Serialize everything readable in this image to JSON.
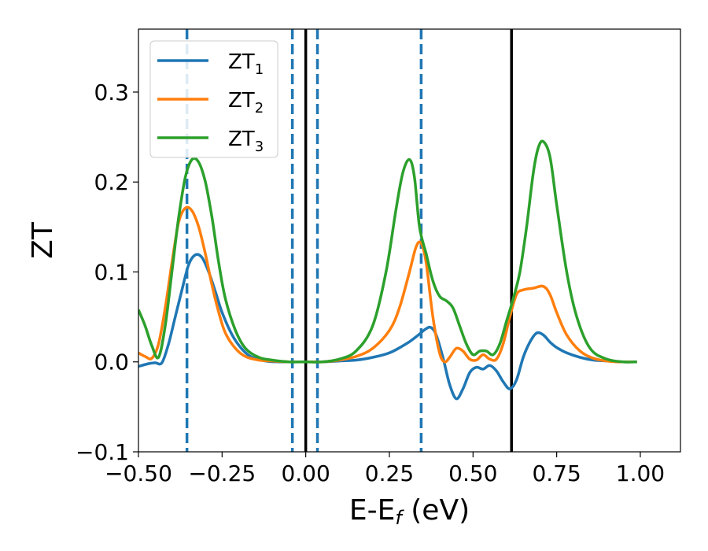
{
  "chart_data": {
    "type": "line",
    "xlabel": "E-E$_f$ (eV)",
    "xlabel_main": "E-E",
    "xlabel_sub": "f",
    "xlabel_unit": " (eV)",
    "ylabel": "ZT",
    "xlim": [
      -0.5,
      1.12
    ],
    "ylim": [
      -0.1,
      0.37
    ],
    "xticks": [
      -0.5,
      -0.25,
      0.0,
      0.25,
      0.5,
      0.75,
      1.0
    ],
    "xtick_labels": [
      "−0.50",
      "−0.25",
      "0.00",
      "0.25",
      "0.50",
      "0.75",
      "1.00"
    ],
    "yticks": [
      -0.1,
      0.0,
      0.1,
      0.2,
      0.3
    ],
    "ytick_labels": [
      "−0.1",
      "0.0",
      "0.1",
      "0.2",
      "0.3"
    ],
    "grid": false,
    "legend_position": "top-left",
    "series": [
      {
        "name": "ZT$_1$",
        "label_main": "ZT",
        "label_sub": "1",
        "color": "#1f77b4",
        "x": [
          -0.5,
          -0.47,
          -0.45,
          -0.43,
          -0.41,
          -0.39,
          -0.37,
          -0.35,
          -0.33,
          -0.31,
          -0.29,
          -0.27,
          -0.25,
          -0.22,
          -0.19,
          -0.16,
          -0.12,
          -0.08,
          -0.04,
          0.0,
          0.05,
          0.1,
          0.15,
          0.2,
          0.25,
          0.3,
          0.33,
          0.36,
          0.375,
          0.39,
          0.41,
          0.43,
          0.45,
          0.47,
          0.49,
          0.51,
          0.53,
          0.55,
          0.57,
          0.59,
          0.61,
          0.63,
          0.65,
          0.67,
          0.69,
          0.71,
          0.73,
          0.75,
          0.78,
          0.82,
          0.86,
          0.9,
          0.94,
          0.99
        ],
        "y": [
          -0.005,
          -0.002,
          -0.001,
          -0.001,
          0.02,
          0.05,
          0.08,
          0.108,
          0.119,
          0.116,
          0.1,
          0.078,
          0.055,
          0.03,
          0.014,
          0.005,
          0.001,
          0.0,
          0.0,
          0.0,
          0.0,
          0.001,
          0.002,
          0.005,
          0.01,
          0.02,
          0.028,
          0.037,
          0.038,
          0.03,
          0.005,
          -0.025,
          -0.041,
          -0.03,
          -0.012,
          -0.006,
          -0.008,
          -0.004,
          -0.01,
          -0.022,
          -0.03,
          -0.02,
          0.005,
          0.022,
          0.032,
          0.03,
          0.022,
          0.016,
          0.01,
          0.005,
          0.002,
          0.001,
          0.0,
          0.0
        ]
      },
      {
        "name": "ZT$_2$",
        "label_main": "ZT",
        "label_sub": "2",
        "color": "#ff7f0e",
        "x": [
          -0.5,
          -0.48,
          -0.46,
          -0.44,
          -0.42,
          -0.4,
          -0.38,
          -0.36,
          -0.34,
          -0.32,
          -0.3,
          -0.28,
          -0.26,
          -0.24,
          -0.21,
          -0.18,
          -0.14,
          -0.1,
          -0.05,
          0.0,
          0.05,
          0.1,
          0.15,
          0.2,
          0.25,
          0.28,
          0.31,
          0.33,
          0.345,
          0.36,
          0.38,
          0.4,
          0.415,
          0.43,
          0.45,
          0.47,
          0.49,
          0.51,
          0.53,
          0.55,
          0.57,
          0.59,
          0.61,
          0.63,
          0.65,
          0.68,
          0.71,
          0.73,
          0.75,
          0.78,
          0.82,
          0.86,
          0.9,
          0.94,
          0.99
        ],
        "y": [
          0.01,
          0.006,
          0.004,
          0.02,
          0.06,
          0.11,
          0.155,
          0.171,
          0.168,
          0.15,
          0.12,
          0.085,
          0.055,
          0.032,
          0.015,
          0.006,
          0.002,
          0.001,
          0.0,
          0.0,
          0.0,
          0.002,
          0.006,
          0.015,
          0.035,
          0.06,
          0.1,
          0.128,
          0.132,
          0.11,
          0.05,
          0.01,
          0.0,
          0.005,
          0.015,
          0.012,
          0.003,
          0.002,
          0.008,
          0.003,
          0.003,
          0.02,
          0.05,
          0.075,
          0.08,
          0.082,
          0.084,
          0.075,
          0.055,
          0.03,
          0.012,
          0.004,
          0.001,
          0.0,
          0.0
        ]
      },
      {
        "name": "ZT$_3$",
        "label_main": "ZT",
        "label_sub": "3",
        "color": "#2ca02c",
        "x": [
          -0.5,
          -0.48,
          -0.46,
          -0.44,
          -0.42,
          -0.4,
          -0.38,
          -0.36,
          -0.34,
          -0.32,
          -0.3,
          -0.28,
          -0.26,
          -0.24,
          -0.21,
          -0.18,
          -0.14,
          -0.1,
          -0.05,
          0.0,
          0.05,
          0.1,
          0.15,
          0.2,
          0.24,
          0.27,
          0.29,
          0.31,
          0.325,
          0.34,
          0.36,
          0.38,
          0.4,
          0.42,
          0.44,
          0.46,
          0.48,
          0.5,
          0.52,
          0.54,
          0.56,
          0.58,
          0.6,
          0.62,
          0.64,
          0.66,
          0.68,
          0.695,
          0.71,
          0.73,
          0.75,
          0.78,
          0.81,
          0.85,
          0.9,
          0.95,
          0.99
        ],
        "y": [
          0.058,
          0.04,
          0.018,
          0.005,
          0.04,
          0.1,
          0.16,
          0.205,
          0.225,
          0.222,
          0.2,
          0.16,
          0.11,
          0.07,
          0.035,
          0.015,
          0.005,
          0.002,
          0.0,
          0.0,
          0.0,
          0.003,
          0.012,
          0.04,
          0.1,
          0.17,
          0.21,
          0.225,
          0.205,
          0.15,
          0.12,
          0.09,
          0.073,
          0.068,
          0.06,
          0.04,
          0.02,
          0.008,
          0.012,
          0.012,
          0.008,
          0.02,
          0.045,
          0.07,
          0.1,
          0.15,
          0.21,
          0.238,
          0.245,
          0.228,
          0.175,
          0.1,
          0.05,
          0.015,
          0.003,
          0.0,
          0.0
        ]
      }
    ],
    "vlines": [
      {
        "x": -0.355,
        "style": "dashed",
        "color": "#1f77b4"
      },
      {
        "x": -0.04,
        "style": "dashed",
        "color": "#1f77b4"
      },
      {
        "x": 0.035,
        "style": "dashed",
        "color": "#1f77b4"
      },
      {
        "x": 0.345,
        "style": "dashed",
        "color": "#1f77b4"
      },
      {
        "x": 0.0,
        "style": "solid",
        "color": "#000000"
      },
      {
        "x": 0.615,
        "style": "solid",
        "color": "#000000"
      }
    ]
  }
}
